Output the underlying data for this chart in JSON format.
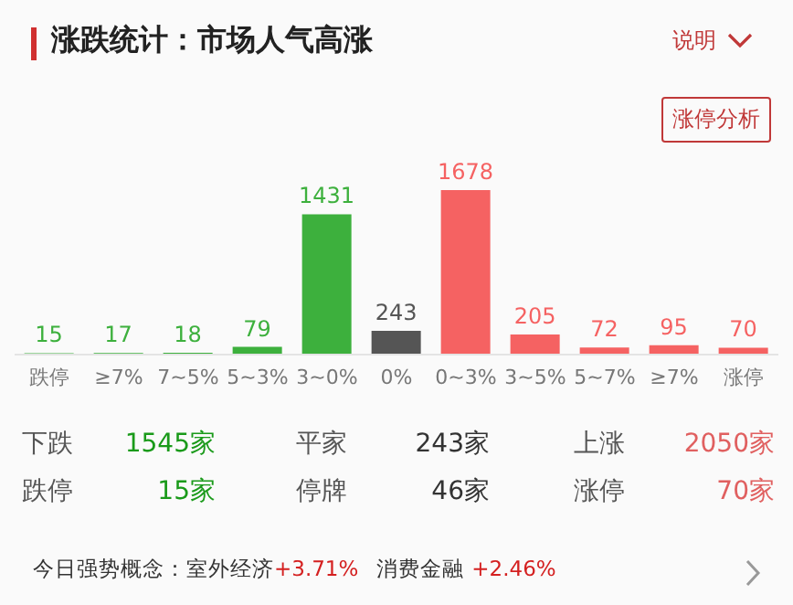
{
  "chart_data": [
    {
      "type": "bar",
      "title": "涨跌统计：市场人气高涨",
      "annotations": [
        "说明",
        "涨停分析"
      ],
      "categories": [
        "跌停",
        "≥7%",
        "7~5%",
        "5~3%",
        "3~0%",
        "0%",
        "0~3%",
        "3~5%",
        "5~7%",
        "≥7%",
        "涨停"
      ],
      "values": [
        15,
        17,
        18,
        79,
        1431,
        243,
        1678,
        205,
        72,
        95,
        70
      ],
      "colors": [
        "#3db03d",
        "#3db03d",
        "#3db03d",
        "#3db03d",
        "#3db03d",
        "#555555",
        "#f56262",
        "#f56262",
        "#f56262",
        "#f56262",
        "#f56262"
      ],
      "data_labels": true
    },
    {
      "type": "other",
      "annotations": [
        "下跌",
        "1545家",
        "平家",
        "243家",
        "上涨",
        "2050家",
        "跌停",
        "15家",
        "停牌",
        "46家",
        "涨停",
        "70家",
        "今日强势概念：室外经济",
        "+3.71%",
        "消费金融",
        "+2.46%"
      ],
      "colors": [
        "#555555",
        "#1a9a1a",
        "#555555",
        "#333333",
        "#555555",
        "#e06060",
        "#555555",
        "#1a9a1a",
        "#555555",
        "#333333",
        "#555555",
        "#e06060",
        "#333333",
        "#d42020",
        "#333333",
        "#d42020"
      ]
    }
  ]
}
